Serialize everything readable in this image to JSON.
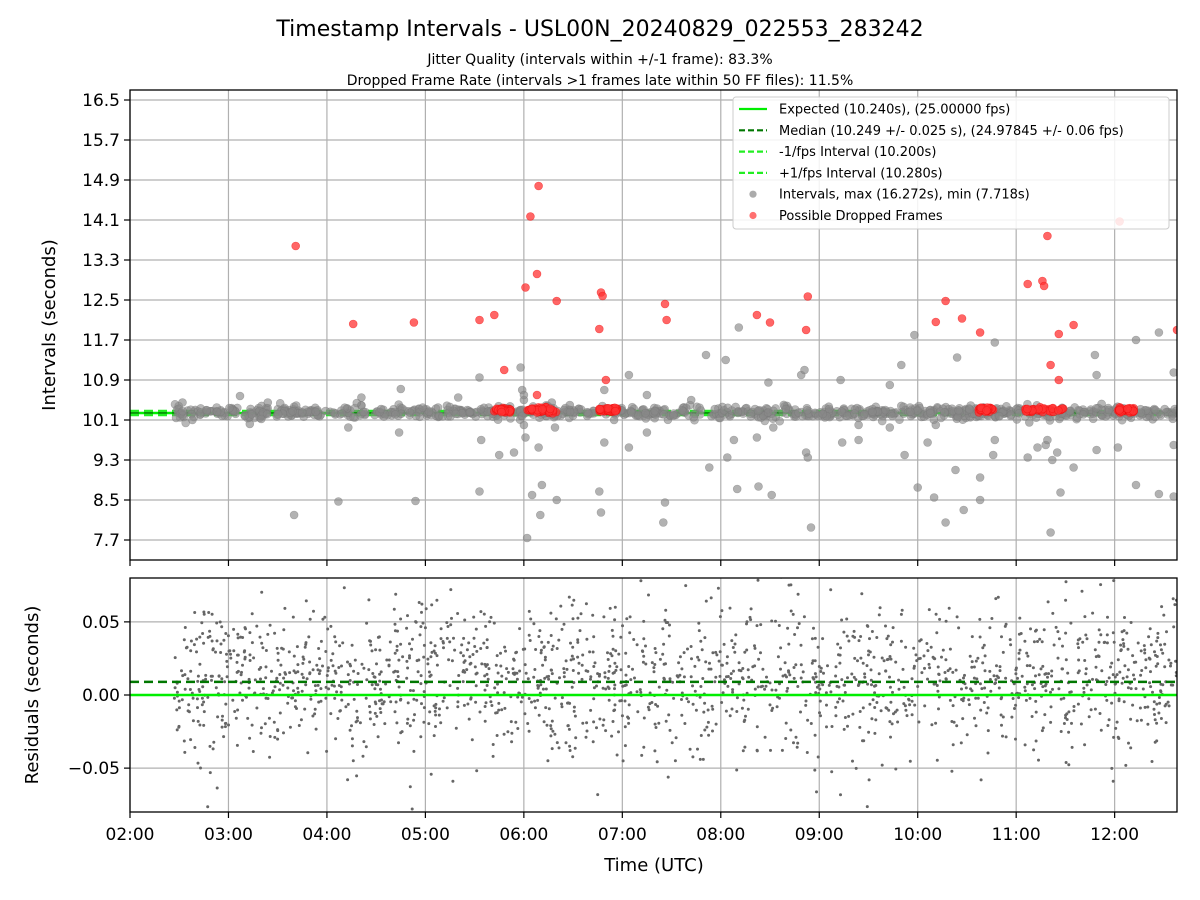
{
  "figure": {
    "title": "Timestamp Intervals - USL00N_20240829_022553_283242",
    "subtitle1": "Jitter Quality (intervals within +/-1 frame): 83.3%",
    "subtitle2": "Dropped Frame Rate (intervals >1 frames late within 50 FF files): 11.5%"
  },
  "colors": {
    "expected": "#00ee00",
    "median": "#007700",
    "interval_bound": "#22ee22",
    "intervals": "#888888",
    "dropped": "#ff3333",
    "residuals": "#666666",
    "grid": "#b0b0b0"
  },
  "chart_data": [
    {
      "type": "scatter",
      "xlabel": "Time (UTC)",
      "ylabel": "Intervals (seconds)",
      "xlim": [
        "02:00",
        "12:38"
      ],
      "ylim": [
        7.3,
        16.7
      ],
      "yticks": [
        "7.7",
        "8.5",
        "9.3",
        "10.1",
        "10.9",
        "11.7",
        "12.5",
        "13.3",
        "14.1",
        "14.9",
        "15.7",
        "16.5"
      ],
      "grid": true,
      "legend_position": "upper-right",
      "hlines": [
        {
          "name": "Expected (10.240s), (25.00000 fps)",
          "y": 10.24,
          "style": "solid"
        },
        {
          "name": "Median (10.249 +/- 0.025 s), (24.97845 +/- 0.06 fps)",
          "y": 10.249,
          "style": "dashed-dark"
        },
        {
          "name": "-1/fps Interval (10.200s)",
          "y": 10.2,
          "style": "dashed-light"
        },
        {
          "name": "+1/fps Interval (10.280s)",
          "y": 10.28,
          "style": "dashed-light"
        }
      ],
      "series": [
        {
          "name": "Intervals, max (16.272s), min (7.718s)",
          "band": {
            "x_start": "02:27",
            "x_end": "12:38",
            "y_center": 10.25,
            "spread": 0.06
          },
          "points": [
            {
              "x": "02:32",
              "y": 10.45
            },
            {
              "x": "02:38",
              "y": 10.1
            },
            {
              "x": "03:07",
              "y": 10.58
            },
            {
              "x": "03:13",
              "y": 10.02
            },
            {
              "x": "03:20",
              "y": 10.12
            },
            {
              "x": "03:24",
              "y": 10.45
            },
            {
              "x": "03:40",
              "y": 8.2
            },
            {
              "x": "04:07",
              "y": 8.47
            },
            {
              "x": "04:13",
              "y": 9.95
            },
            {
              "x": "04:21",
              "y": 10.55
            },
            {
              "x": "04:33",
              "y": 10.32
            },
            {
              "x": "04:45",
              "y": 10.72
            },
            {
              "x": "04:44",
              "y": 9.85
            },
            {
              "x": "04:54",
              "y": 8.48
            },
            {
              "x": "05:20",
              "y": 10.55
            },
            {
              "x": "05:33",
              "y": 8.67
            },
            {
              "x": "05:33",
              "y": 10.95
            },
            {
              "x": "05:34",
              "y": 9.7
            },
            {
              "x": "05:45",
              "y": 9.4
            },
            {
              "x": "05:54",
              "y": 9.45
            },
            {
              "x": "05:58",
              "y": 11.15
            },
            {
              "x": "05:59",
              "y": 10.7
            },
            {
              "x": "06:00",
              "y": 10.5
            },
            {
              "x": "06:00",
              "y": 10.6
            },
            {
              "x": "06:00",
              "y": 10.0
            },
            {
              "x": "06:01",
              "y": 9.75
            },
            {
              "x": "06:02",
              "y": 7.74
            },
            {
              "x": "06:05",
              "y": 8.6
            },
            {
              "x": "06:09",
              "y": 9.55
            },
            {
              "x": "06:10",
              "y": 8.2
            },
            {
              "x": "06:11",
              "y": 8.8
            },
            {
              "x": "06:17",
              "y": 10.45
            },
            {
              "x": "06:19",
              "y": 9.95
            },
            {
              "x": "06:20",
              "y": 8.5
            },
            {
              "x": "06:28",
              "y": 10.4
            },
            {
              "x": "06:46",
              "y": 8.67
            },
            {
              "x": "06:47",
              "y": 8.25
            },
            {
              "x": "06:49",
              "y": 9.65
            },
            {
              "x": "06:49",
              "y": 10.7
            },
            {
              "x": "06:55",
              "y": 10.1
            },
            {
              "x": "07:04",
              "y": 11.0
            },
            {
              "x": "07:04",
              "y": 9.55
            },
            {
              "x": "07:15",
              "y": 9.85
            },
            {
              "x": "07:15",
              "y": 10.6
            },
            {
              "x": "07:25",
              "y": 8.05
            },
            {
              "x": "07:26",
              "y": 8.45
            },
            {
              "x": "07:42",
              "y": 10.5
            },
            {
              "x": "07:51",
              "y": 11.4
            },
            {
              "x": "07:53",
              "y": 9.15
            },
            {
              "x": "08:03",
              "y": 11.3
            },
            {
              "x": "08:04",
              "y": 9.35
            },
            {
              "x": "08:08",
              "y": 9.7
            },
            {
              "x": "08:10",
              "y": 8.72
            },
            {
              "x": "08:11",
              "y": 11.95
            },
            {
              "x": "08:22",
              "y": 9.75
            },
            {
              "x": "08:23",
              "y": 8.77
            },
            {
              "x": "08:29",
              "y": 10.85
            },
            {
              "x": "08:31",
              "y": 8.6
            },
            {
              "x": "08:32",
              "y": 9.95
            },
            {
              "x": "08:49",
              "y": 11.0
            },
            {
              "x": "08:51",
              "y": 11.1
            },
            {
              "x": "08:52",
              "y": 9.45
            },
            {
              "x": "08:53",
              "y": 9.35
            },
            {
              "x": "08:55",
              "y": 7.95
            },
            {
              "x": "09:13",
              "y": 10.9
            },
            {
              "x": "09:14",
              "y": 9.65
            },
            {
              "x": "09:24",
              "y": 9.7
            },
            {
              "x": "09:24",
              "y": 10.0
            },
            {
              "x": "09:43",
              "y": 10.8
            },
            {
              "x": "09:43",
              "y": 9.95
            },
            {
              "x": "09:50",
              "y": 11.2
            },
            {
              "x": "09:52",
              "y": 9.4
            },
            {
              "x": "09:58",
              "y": 11.8
            },
            {
              "x": "10:00",
              "y": 8.75
            },
            {
              "x": "10:06",
              "y": 9.65
            },
            {
              "x": "10:10",
              "y": 8.55
            },
            {
              "x": "10:11",
              "y": 10.0
            },
            {
              "x": "10:17",
              "y": 8.05
            },
            {
              "x": "10:24",
              "y": 11.35
            },
            {
              "x": "10:23",
              "y": 9.1
            },
            {
              "x": "10:28",
              "y": 8.3
            },
            {
              "x": "10:38",
              "y": 8.5
            },
            {
              "x": "10:38",
              "y": 8.95
            },
            {
              "x": "10:47",
              "y": 11.65
            },
            {
              "x": "10:47",
              "y": 9.7
            },
            {
              "x": "10:46",
              "y": 9.4
            },
            {
              "x": "11:07",
              "y": 9.35
            },
            {
              "x": "11:08",
              "y": 10.05
            },
            {
              "x": "11:13",
              "y": 9.55
            },
            {
              "x": "11:18",
              "y": 9.6
            },
            {
              "x": "11:19",
              "y": 9.7
            },
            {
              "x": "11:21",
              "y": 7.85
            },
            {
              "x": "11:22",
              "y": 9.3
            },
            {
              "x": "11:25",
              "y": 9.45
            },
            {
              "x": "11:27",
              "y": 8.65
            },
            {
              "x": "11:35",
              "y": 9.15
            },
            {
              "x": "11:48",
              "y": 11.4
            },
            {
              "x": "11:49",
              "y": 11.0
            },
            {
              "x": "11:49",
              "y": 9.5
            },
            {
              "x": "12:02",
              "y": 9.55
            },
            {
              "x": "12:13",
              "y": 8.8
            },
            {
              "x": "12:13",
              "y": 11.7
            },
            {
              "x": "12:27",
              "y": 8.62
            },
            {
              "x": "12:27",
              "y": 11.85
            },
            {
              "x": "12:36",
              "y": 9.6
            },
            {
              "x": "12:36",
              "y": 11.05
            },
            {
              "x": "12:36",
              "y": 8.57
            }
          ]
        },
        {
          "name": "Possible Dropped Frames",
          "clusters": [
            {
              "x_start": "05:42",
              "x_end": "05:52",
              "y": 10.3
            },
            {
              "x_start": "06:02",
              "x_end": "06:20",
              "y": 10.3
            },
            {
              "x_start": "06:46",
              "x_end": "06:57",
              "y": 10.3
            },
            {
              "x_start": "10:37",
              "x_end": "10:46",
              "y": 10.3
            },
            {
              "x_start": "11:05",
              "x_end": "11:30",
              "y": 10.3
            },
            {
              "x_start": "12:02",
              "x_end": "12:12",
              "y": 10.3
            }
          ],
          "points": [
            {
              "x": "03:41",
              "y": 13.58
            },
            {
              "x": "04:16",
              "y": 12.02
            },
            {
              "x": "04:53",
              "y": 12.05
            },
            {
              "x": "05:33",
              "y": 12.1
            },
            {
              "x": "05:42",
              "y": 12.2
            },
            {
              "x": "05:48",
              "y": 11.1
            },
            {
              "x": "06:01",
              "y": 12.75
            },
            {
              "x": "06:04",
              "y": 14.17
            },
            {
              "x": "06:09",
              "y": 14.78
            },
            {
              "x": "06:08",
              "y": 13.02
            },
            {
              "x": "06:20",
              "y": 12.48
            },
            {
              "x": "06:08",
              "y": 10.6
            },
            {
              "x": "06:47",
              "y": 12.65
            },
            {
              "x": "06:48",
              "y": 12.58
            },
            {
              "x": "06:46",
              "y": 11.92
            },
            {
              "x": "06:50",
              "y": 10.9
            },
            {
              "x": "07:26",
              "y": 12.42
            },
            {
              "x": "07:27",
              "y": 12.1
            },
            {
              "x": "08:22",
              "y": 12.2
            },
            {
              "x": "08:30",
              "y": 12.05
            },
            {
              "x": "08:53",
              "y": 12.57
            },
            {
              "x": "08:52",
              "y": 11.9
            },
            {
              "x": "10:11",
              "y": 12.06
            },
            {
              "x": "10:17",
              "y": 12.48
            },
            {
              "x": "10:27",
              "y": 12.13
            },
            {
              "x": "10:38",
              "y": 11.85
            },
            {
              "x": "11:07",
              "y": 12.82
            },
            {
              "x": "11:16",
              "y": 12.88
            },
            {
              "x": "11:17",
              "y": 12.78
            },
            {
              "x": "11:19",
              "y": 13.78
            },
            {
              "x": "11:21",
              "y": 11.2
            },
            {
              "x": "11:26",
              "y": 10.9
            },
            {
              "x": "11:26",
              "y": 11.82
            },
            {
              "x": "11:35",
              "y": 12.0
            },
            {
              "x": "12:03",
              "y": 14.07
            },
            {
              "x": "12:38",
              "y": 11.9
            }
          ]
        }
      ]
    },
    {
      "type": "scatter",
      "xlabel": "Time (UTC)",
      "ylabel": "Residuals (seconds)",
      "xlim": [
        "02:00",
        "12:38"
      ],
      "ylim": [
        -0.08,
        0.08
      ],
      "yticks": [
        "−0.05",
        "0.00",
        "0.05"
      ],
      "xticks": [
        "02:00",
        "03:00",
        "04:00",
        "05:00",
        "06:00",
        "07:00",
        "08:00",
        "09:00",
        "10:00",
        "11:00",
        "12:00"
      ],
      "grid": true,
      "hlines": [
        {
          "name": "Expected",
          "y": 0.0,
          "style": "solid"
        },
        {
          "name": "Median",
          "y": 0.009,
          "style": "dashed-dark"
        }
      ],
      "series": [
        {
          "name": "Residuals",
          "distribution": {
            "x_start": "02:27",
            "x_end": "12:38",
            "center": 0.01,
            "sigma": 0.026,
            "count": 1800
          }
        }
      ]
    }
  ]
}
